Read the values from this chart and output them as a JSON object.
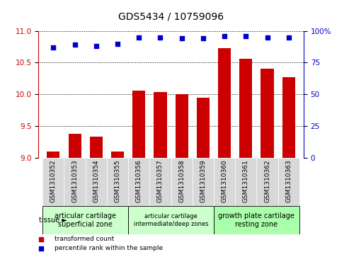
{
  "title": "GDS5434 / 10759096",
  "samples": [
    "GSM1310352",
    "GSM1310353",
    "GSM1310354",
    "GSM1310355",
    "GSM1310356",
    "GSM1310357",
    "GSM1310358",
    "GSM1310359",
    "GSM1310360",
    "GSM1310361",
    "GSM1310362",
    "GSM1310363"
  ],
  "bar_values": [
    9.1,
    9.38,
    9.33,
    9.1,
    10.06,
    10.04,
    10.0,
    9.95,
    10.73,
    10.56,
    10.4,
    10.27
  ],
  "percentile_values": [
    87,
    89,
    88,
    90,
    95,
    95,
    94,
    94,
    96,
    96,
    95,
    95
  ],
  "bar_color": "#cc0000",
  "percentile_color": "#0000cc",
  "ylim_left": [
    9.0,
    11.0
  ],
  "ylim_right": [
    0,
    100
  ],
  "yticks_left": [
    9.0,
    9.5,
    10.0,
    10.5,
    11.0
  ],
  "yticks_right": [
    0,
    25,
    50,
    75,
    100
  ],
  "ytick_labels_right": [
    "0",
    "25",
    "50",
    "75",
    "100%"
  ],
  "tissue_groups": [
    {
      "label": "articular cartilage\nsuperficial zone",
      "start": 0,
      "end": 3,
      "color": "#ccffcc",
      "font_size": 7
    },
    {
      "label": "articular cartilage\nintermediate/deep zones",
      "start": 4,
      "end": 7,
      "color": "#ccffcc",
      "font_size": 6
    },
    {
      "label": "growth plate cartilage\nresting zone",
      "start": 8,
      "end": 11,
      "color": "#aaffaa",
      "font_size": 7
    }
  ],
  "tissue_label": "tissue ►",
  "legend_bar_label": "transformed count",
  "legend_dot_label": "percentile rank within the sample",
  "plot_bg_color": "#ffffff",
  "title_fontsize": 10,
  "tick_label_fontsize": 6.5,
  "axis_label_fontsize": 7.5
}
